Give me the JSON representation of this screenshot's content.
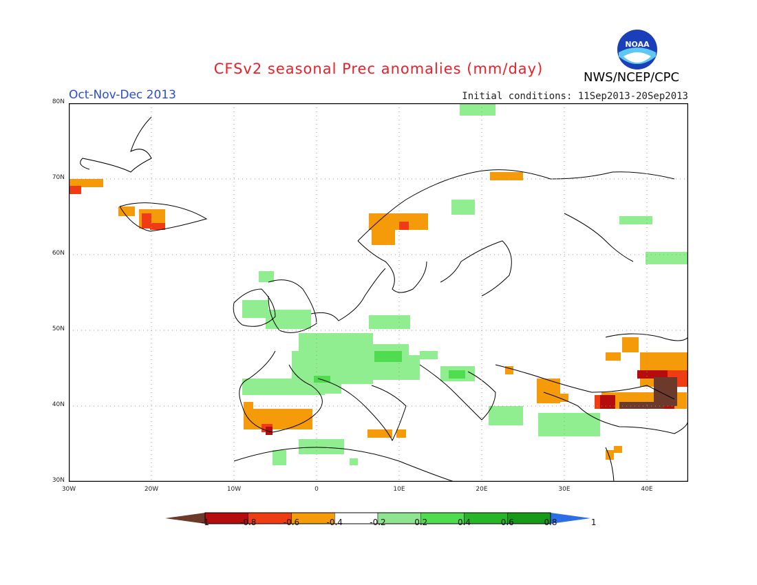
{
  "title": "CFSv2 seasonal Prec anomalies (mm/day)",
  "season": "Oct-Nov-Dec 2013",
  "initial_conditions": "Initial conditions: 11Sep2013-20Sep2013",
  "agency": "NWS/NCEP/CPC",
  "logo_text": "NOAA",
  "map": {
    "lon_range": [
      -30,
      45
    ],
    "lat_range": [
      30,
      80
    ],
    "lat_ticks": [
      "30N",
      "40N",
      "50N",
      "60N",
      "70N",
      "80N"
    ],
    "lon_ticks": [
      "30W",
      "20W",
      "10W",
      "0",
      "10E",
      "20E",
      "30E",
      "40E"
    ]
  },
  "colorbar": {
    "labels": [
      "-1",
      "-0.8",
      "-0.6",
      "-0.4",
      "-0.2",
      "0.2",
      "0.4",
      "0.6",
      "0.8",
      "1"
    ],
    "colors": [
      "#6b3a2a",
      "#b50d0d",
      "#ef3c14",
      "#f59b0a",
      "#ffffff",
      "#8fe58f",
      "#4fdc4f",
      "#27b627",
      "#179a17",
      "#2b6ee6"
    ]
  }
}
